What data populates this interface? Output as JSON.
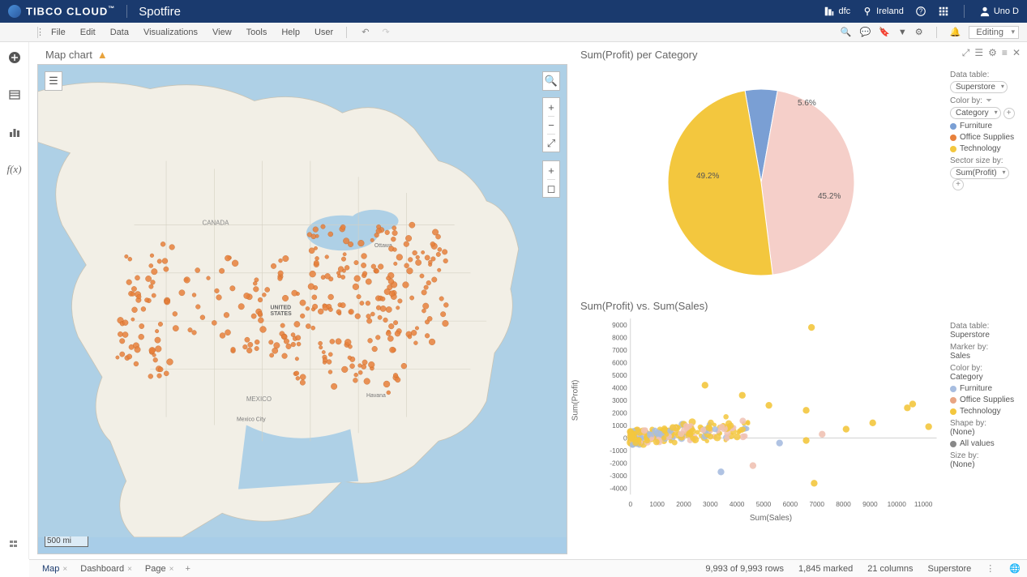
{
  "banner": {
    "brand": "TIBCO CLOUD",
    "product": "Spotfire",
    "dfc": "dfc",
    "location": "Ireland",
    "user": "Uno D"
  },
  "menubar": {
    "items": [
      "File",
      "Edit",
      "Data",
      "Visualizations",
      "View",
      "Tools",
      "Help",
      "User"
    ],
    "mode": "Editing"
  },
  "map": {
    "title": "Map chart",
    "scale": "500 mi"
  },
  "pie": {
    "title": "Sum(Profit) per Category",
    "data_table_label": "Data table:",
    "data_table": "Superstore",
    "color_by_label": "Color by:",
    "color_by": "Category",
    "sector_label": "Sector size by:",
    "sector_by": "Sum(Profit)",
    "slices": [
      {
        "label": "Furniture",
        "pct": 5.6,
        "color": "#7a9fd4"
      },
      {
        "label": "Office Supplies",
        "pct": 45.2,
        "color": "#f5cfc9"
      },
      {
        "label": "Technology",
        "pct": 49.2,
        "color": "#f3c73e"
      }
    ],
    "pct_labels": {
      "furn": "5.6%",
      "off": "45.2%",
      "tech": "49.2%"
    },
    "legend": [
      {
        "label": "Furniture",
        "color": "#7a9fd4"
      },
      {
        "label": "Office Supplies",
        "color": "#e8813c"
      },
      {
        "label": "Technology",
        "color": "#f3c73e"
      }
    ]
  },
  "scatter": {
    "title": "Sum(Profit) vs. Sum(Sales)",
    "xlabel": "Sum(Sales)",
    "ylabel": "Sum(Profit)",
    "x_ticks": [
      0,
      1000,
      2000,
      3000,
      4000,
      5000,
      6000,
      7000,
      8000,
      9000,
      10000,
      11000
    ],
    "y_ticks": [
      -4000,
      -3000,
      -2000,
      -1000,
      0,
      1000,
      2000,
      3000,
      4000,
      5000,
      6000,
      7000,
      8000,
      9000
    ],
    "xlim": [
      0,
      11500
    ],
    "ylim": [
      -4500,
      9500
    ],
    "colors": {
      "Furniture": "#a7bde0",
      "Office Supplies": "#f0c2b4",
      "Technology": "#f3c73e"
    },
    "config": {
      "data_table_label": "Data table:",
      "data_table": "Superstore",
      "marker_label": "Marker by:",
      "marker_by": "Sales",
      "color_label": "Color by:",
      "color_by": "Category",
      "shape_label": "Shape by:",
      "shape_by": "(None)",
      "all_values": "All values",
      "size_label": "Size by:",
      "size_by": "(None)"
    },
    "legend": [
      {
        "label": "Furniture",
        "color": "#a7bde0"
      },
      {
        "label": "Office Supplies",
        "color": "#e8a583"
      },
      {
        "label": "Technology",
        "color": "#f3c73e"
      }
    ]
  },
  "status": {
    "tabs": [
      "Map",
      "Dashboard",
      "Page"
    ],
    "rows": "9,993 of 9,993 rows",
    "marked": "1,845 marked",
    "cols": "21 columns",
    "table": "Superstore"
  }
}
